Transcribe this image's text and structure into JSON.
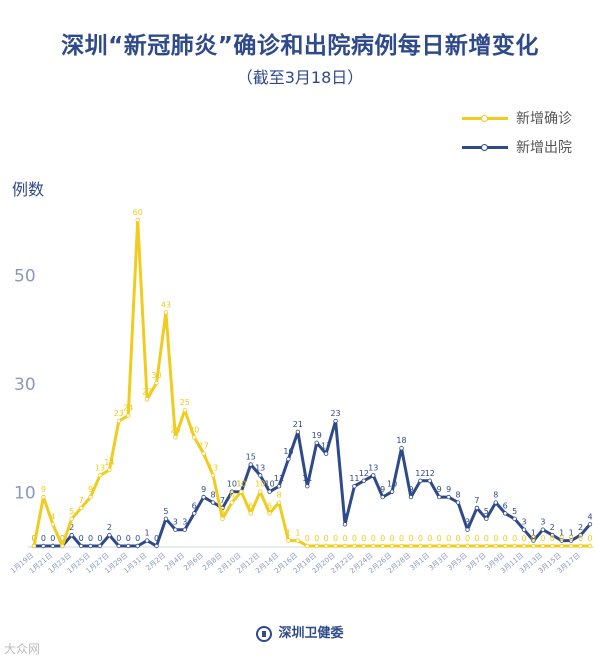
{
  "title": "深圳“新冠肺炎”确诊和出院病例每日新增变化",
  "subtitle": "（截至3月18日）",
  "watermark": "大众网",
  "footer": {
    "org": "深圳卫健委"
  },
  "colors": {
    "confirmed": "#f0cc1e",
    "discharged": "#2f4a8a",
    "axis_text": "#8a98c0"
  },
  "chart_data": {
    "type": "line",
    "ylabel": "例数",
    "yticks": [
      10,
      30,
      50
    ],
    "ylim": [
      0,
      62
    ],
    "x": [
      "1月19日",
      "1月20日",
      "1月21日",
      "1月22日",
      "1月23日",
      "1月24日",
      "1月25日",
      "1月26日",
      "1月27日",
      "1月28日",
      "1月29日",
      "1月30日",
      "1月31日",
      "2月1日",
      "2月2日",
      "2月3日",
      "2月4日",
      "2月5日",
      "2月6日",
      "2月7日",
      "2月8日",
      "2月9日",
      "2月10日",
      "2月11日",
      "2月12日",
      "2月13日",
      "2月14日",
      "2月15日",
      "2月16日",
      "2月17日",
      "2月18日",
      "2月19日",
      "2月20日",
      "2月21日",
      "2月22日",
      "2月23日",
      "2月24日",
      "2月25日",
      "2月26日",
      "2月27日",
      "2月28日",
      "2月29日",
      "3月1日",
      "3月2日",
      "3月3日",
      "3月4日",
      "3月5日",
      "3月6日",
      "3月7日",
      "3月8日",
      "3月9日",
      "3月10日",
      "3月11日",
      "3月12日",
      "3月13日",
      "3月14日",
      "3月15日",
      "3月16日",
      "3月17日",
      "3月18日"
    ],
    "x_tick_labels": [
      "1月19日",
      "1月21日",
      "1月23日",
      "1月25日",
      "1月27日",
      "1月29日",
      "1月31日",
      "2月2日",
      "2月4日",
      "2月6日",
      "2月8日",
      "2月10日",
      "2月12日",
      "2月14日",
      "2月16日",
      "2月18日",
      "2月20日",
      "2月22日",
      "2月24日",
      "2月26日",
      "2月28日",
      "3月1日",
      "3月3日",
      "3月5日",
      "3月7日",
      "3月9日",
      "3月11日",
      "3月13日",
      "3月15日",
      "3月17日"
    ],
    "series": [
      {
        "name": "新增确诊",
        "values": [
          0,
          9,
          4,
          0,
          5,
          7,
          9,
          13,
          14,
          23,
          24,
          60,
          27,
          30,
          43,
          20,
          25,
          20,
          17,
          13,
          5,
          8,
          10,
          6,
          10,
          6,
          8,
          1,
          1,
          0,
          0,
          0,
          0,
          0,
          0,
          0,
          0,
          0,
          0,
          0,
          0,
          0,
          0,
          0,
          0,
          0,
          0,
          0,
          0,
          0,
          0,
          0,
          0,
          0,
          0,
          0,
          0,
          0,
          0,
          0
        ]
      },
      {
        "name": "新增出院",
        "values": [
          0,
          0,
          0,
          0,
          2,
          0,
          0,
          0,
          2,
          0,
          0,
          0,
          1,
          0,
          5,
          3,
          3,
          6,
          9,
          8,
          7,
          10,
          10,
          15,
          13,
          10,
          11,
          16,
          21,
          11,
          19,
          17,
          23,
          4,
          11,
          12,
          13,
          9,
          10,
          18,
          9,
          12,
          12,
          9,
          9,
          8,
          3,
          7,
          5,
          8,
          6,
          5,
          3,
          1,
          3,
          2,
          1,
          1,
          2,
          4
        ]
      }
    ]
  }
}
